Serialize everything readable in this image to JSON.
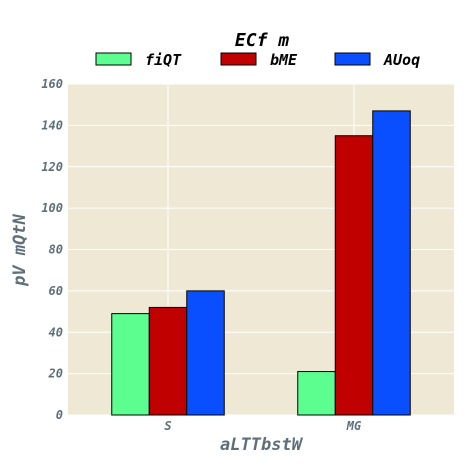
{
  "chart_data": {
    "type": "bar",
    "title": "ECf m",
    "xlabel": "aLTTbstW",
    "ylabel": "pV mQtN",
    "categories": [
      "S",
      "MG"
    ],
    "series": [
      {
        "name": "fiQT",
        "color": "#5cff8f",
        "values": [
          49,
          21
        ]
      },
      {
        "name": "bME",
        "color": "#c00000",
        "values": [
          52,
          135
        ]
      },
      {
        "name": "AUoq",
        "color": "#0a4fff",
        "values": [
          60,
          147
        ]
      }
    ],
    "ylim": [
      0,
      160
    ],
    "yticks": [
      0,
      20,
      40,
      60,
      80,
      100,
      120,
      140,
      160
    ],
    "grid": true,
    "legend_position": "top-center",
    "background_color": "#efe8d4"
  }
}
